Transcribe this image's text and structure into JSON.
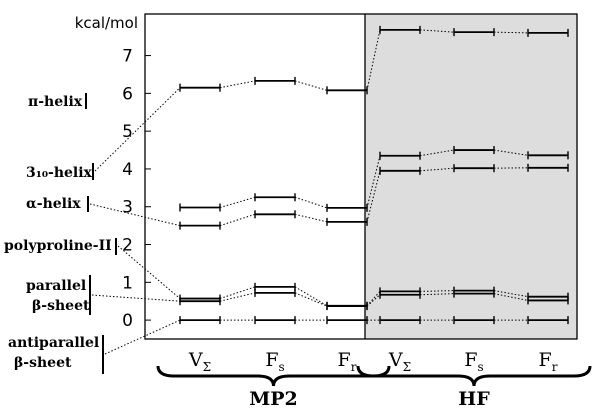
{
  "chart_data": {
    "type": "line",
    "unit_label": "kcal/mol",
    "ylim": [
      -0.5,
      8.1
    ],
    "yticks": [
      0,
      1,
      2,
      3,
      4,
      5,
      6,
      7
    ],
    "categories": [
      {
        "base": "V",
        "sub": "Σ"
      },
      {
        "base": "F",
        "sub": "s"
      },
      {
        "base": "F",
        "sub": "r"
      },
      {
        "base": "V",
        "sub": "Σ"
      },
      {
        "base": "F",
        "sub": "s"
      },
      {
        "base": "F",
        "sub": "r"
      }
    ],
    "groups": [
      {
        "label": "MP2",
        "shaded": false,
        "range": [
          0,
          2
        ]
      },
      {
        "label": "HF",
        "shaded": true,
        "range": [
          3,
          5
        ]
      }
    ],
    "shading_color": "#dddddd",
    "series": [
      {
        "name": "π-helix",
        "values": [
          6.15,
          6.33,
          6.08,
          7.68,
          7.62,
          7.6
        ]
      },
      {
        "name": "3₁₀-helix",
        "values": [
          2.98,
          3.25,
          2.97,
          4.35,
          4.5,
          4.36
        ]
      },
      {
        "name": "α-helix",
        "values": [
          2.5,
          2.8,
          2.6,
          3.95,
          4.02,
          4.03
        ]
      },
      {
        "name": "polyproline-II",
        "values": [
          0.57,
          0.88,
          0.38,
          0.76,
          0.78,
          0.62
        ]
      },
      {
        "name": "parallel β-sheet",
        "values": [
          0.5,
          0.72,
          0.37,
          0.67,
          0.7,
          0.52
        ]
      },
      {
        "name": "antiparallel β-sheet",
        "values": [
          0,
          0,
          0,
          0,
          0,
          0
        ]
      }
    ],
    "legend_labels": [
      {
        "text": "π-helix"
      },
      {
        "text": "3₁₀-helix"
      },
      {
        "text": "α-helix"
      },
      {
        "text": "polyproline-II"
      },
      {
        "text": "parallel",
        "text2": "β-sheet"
      },
      {
        "text": "antiparallel",
        "text2": "β-sheet"
      }
    ]
  }
}
